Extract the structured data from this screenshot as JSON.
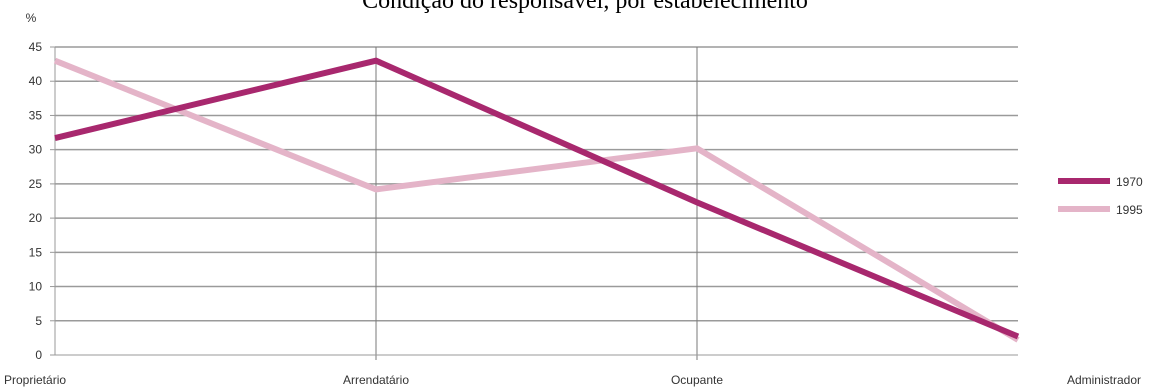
{
  "chart_data": {
    "type": "line",
    "title": "Condição do responsável, por estabelecimento",
    "ylabel": "%",
    "xlabel": "",
    "categories": [
      "Proprietário",
      "Arrendatário",
      "Ocupante",
      "Administrador"
    ],
    "ylim": [
      0,
      45
    ],
    "yticks": [
      0,
      5,
      10,
      15,
      20,
      25,
      30,
      35,
      40,
      45
    ],
    "grid": true,
    "legend_position": "right",
    "series": [
      {
        "name": "1970",
        "values": [
          31.7,
          43.0,
          22.3,
          2.7
        ],
        "color": "#a8286e"
      },
      {
        "name": "1995",
        "values": [
          43.0,
          24.2,
          30.2,
          2.2
        ],
        "color": "#e4b4c8"
      }
    ]
  }
}
